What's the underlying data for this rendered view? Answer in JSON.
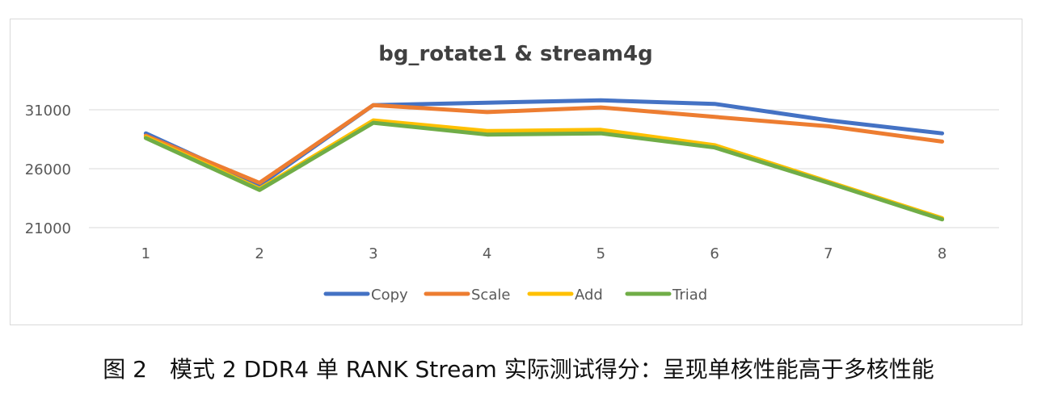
{
  "chart_data": {
    "type": "line",
    "title": "bg_rotate1 & stream4g",
    "xlabel": "",
    "ylabel": "",
    "categories": [
      "1",
      "2",
      "3",
      "4",
      "5",
      "6",
      "7",
      "8"
    ],
    "y_ticks": [
      "21000",
      "26000",
      "31000"
    ],
    "ylim": [
      21000,
      31000
    ],
    "grid": true,
    "legend_position": "bottom",
    "series": [
      {
        "name": "Copy",
        "color": "#4472C4",
        "values": [
          29000,
          24600,
          31400,
          31600,
          31800,
          31500,
          30100,
          29000
        ]
      },
      {
        "name": "Scale",
        "color": "#ED7D31",
        "values": [
          28800,
          24800,
          31400,
          30800,
          31200,
          30400,
          29600,
          28300
        ]
      },
      {
        "name": "Add",
        "color": "#FFC000",
        "values": [
          28700,
          24300,
          30100,
          29200,
          29300,
          28000,
          24900,
          21800
        ]
      },
      {
        "name": "Triad",
        "color": "#70AD47",
        "values": [
          28600,
          24200,
          29900,
          28900,
          29000,
          27800,
          24800,
          21700
        ]
      }
    ]
  },
  "caption": "图 2　模式 2 DDR4 单 RANK Stream 实际测试得分：呈现单核性能高于多核性能"
}
